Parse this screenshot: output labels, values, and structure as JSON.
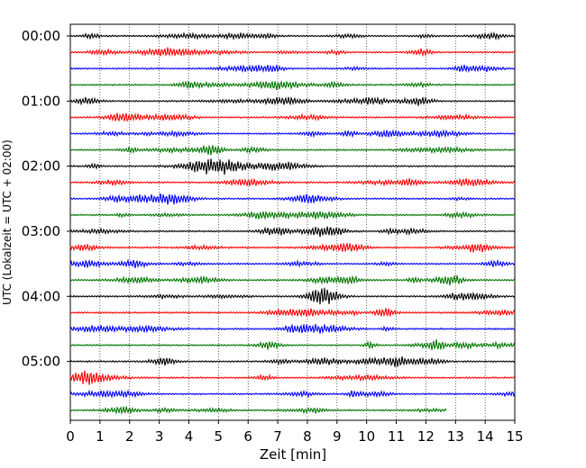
{
  "chart_data": {
    "type": "line",
    "title": "",
    "xlabel": "Zeit  [min]",
    "ylabel": "UTC (Lokalzeit = UTC + 02:00)",
    "xlim": [
      0,
      15
    ],
    "x_ticks": [
      "0",
      "1",
      "2",
      "3",
      "4",
      "5",
      "6",
      "7",
      "8",
      "9",
      "10",
      "11",
      "12",
      "13",
      "14",
      "15"
    ],
    "y_tick_labels": [
      "00:00",
      "01:00",
      "02:00",
      "03:00",
      "04:00",
      "05:00"
    ],
    "grid": "vertical dotted lines at each minute",
    "legend": "none",
    "trace_interval_minutes": 15,
    "trace_colors": [
      "#000000",
      "#ff0000",
      "#0000ff",
      "#007700"
    ],
    "trace_count": 24,
    "last_trace_end_minute": 12.7
  }
}
